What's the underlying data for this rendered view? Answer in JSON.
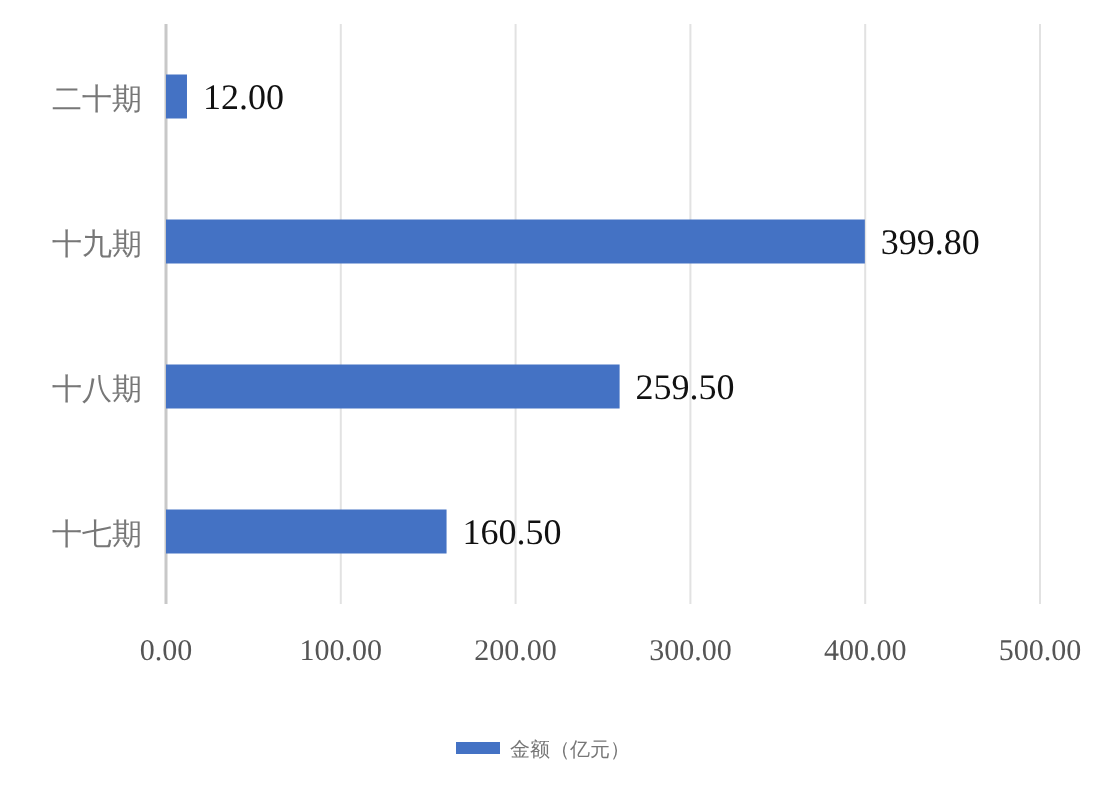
{
  "chart_data": {
    "type": "bar",
    "orientation": "horizontal",
    "categories": [
      "二十期",
      "十九期",
      "十八期",
      "十七期"
    ],
    "series": [
      {
        "name": "金额（亿元）",
        "color": "#4472c4",
        "values": [
          12,
          399.8,
          259.5,
          160.5
        ],
        "value_labels": [
          "12.00",
          "399.80",
          "259.50",
          "160.50"
        ]
      }
    ],
    "xlim": [
      0,
      500
    ],
    "xticks": [
      {
        "value": 0,
        "label": "0.00"
      },
      {
        "value": 100,
        "label": "100.00"
      },
      {
        "value": 200,
        "label": "200.00"
      },
      {
        "value": 300,
        "label": "300.00"
      },
      {
        "value": 400,
        "label": "400.00"
      },
      {
        "value": 500,
        "label": "500.00"
      }
    ],
    "grid": "x",
    "legend": "bottom"
  }
}
